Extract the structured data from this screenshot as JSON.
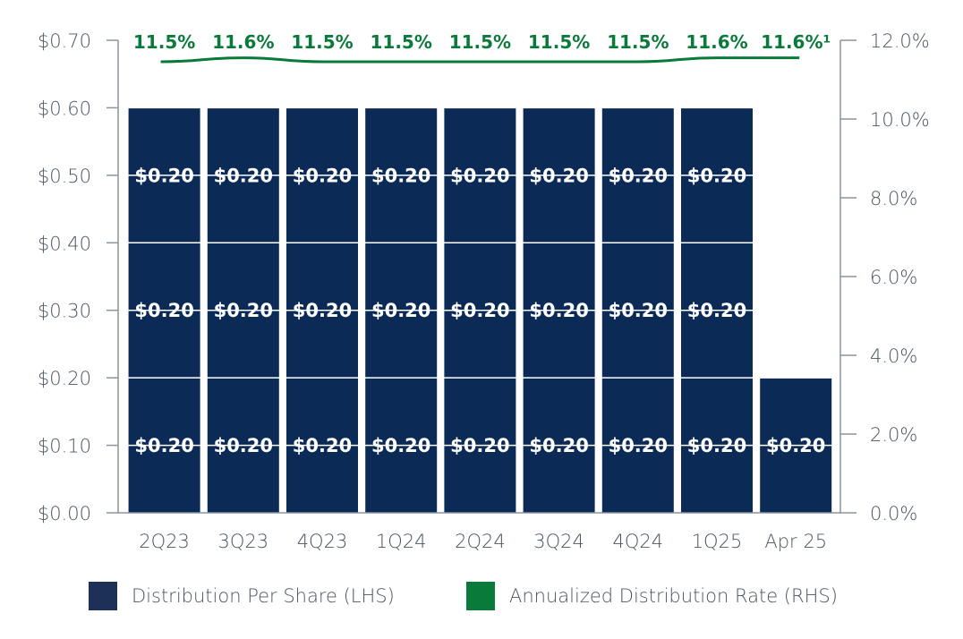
{
  "chart_data": {
    "type": "bar",
    "categories": [
      "2Q23",
      "3Q23",
      "4Q23",
      "1Q24",
      "2Q24",
      "3Q24",
      "4Q24",
      "1Q25",
      "Apr 25"
    ],
    "series": [
      {
        "name": "Distribution Per Share (LHS)",
        "axis": "left",
        "type": "stacked-bar",
        "segments_per_bar": [
          [
            "$0.20",
            "$0.20",
            "$0.20"
          ],
          [
            "$0.20",
            "$0.20",
            "$0.20"
          ],
          [
            "$0.20",
            "$0.20",
            "$0.20"
          ],
          [
            "$0.20",
            "$0.20",
            "$0.20"
          ],
          [
            "$0.20",
            "$0.20",
            "$0.20"
          ],
          [
            "$0.20",
            "$0.20",
            "$0.20"
          ],
          [
            "$0.20",
            "$0.20",
            "$0.20"
          ],
          [
            "$0.20",
            "$0.20",
            "$0.20"
          ],
          [
            "$0.20"
          ]
        ],
        "segment_values": [
          [
            0.2,
            0.2,
            0.2
          ],
          [
            0.2,
            0.2,
            0.2
          ],
          [
            0.2,
            0.2,
            0.2
          ],
          [
            0.2,
            0.2,
            0.2
          ],
          [
            0.2,
            0.2,
            0.2
          ],
          [
            0.2,
            0.2,
            0.2
          ],
          [
            0.2,
            0.2,
            0.2
          ],
          [
            0.2,
            0.2,
            0.2
          ],
          [
            0.2
          ]
        ],
        "color": "#0b2a55"
      },
      {
        "name": "Annualized Distribution Rate (RHS)",
        "axis": "right",
        "type": "line",
        "values": [
          11.5,
          11.6,
          11.5,
          11.5,
          11.5,
          11.5,
          11.5,
          11.6,
          11.6
        ],
        "labels": [
          "11.5%",
          "11.6%",
          "11.5%",
          "11.5%",
          "11.5%",
          "11.5%",
          "11.5%",
          "11.6%",
          "11.6%¹"
        ],
        "color": "#0a7a3a"
      }
    ],
    "y_left": {
      "range": [
        0,
        0.7
      ],
      "ticks": [
        0,
        0.1,
        0.2,
        0.3,
        0.4,
        0.5,
        0.6,
        0.7
      ],
      "tick_labels": [
        "$0.00",
        "$0.10",
        "$0.20",
        "$0.30",
        "$0.40",
        "$0.50",
        "$0.60",
        "$0.70"
      ]
    },
    "y_right": {
      "range": [
        0,
        12
      ],
      "ticks": [
        0,
        2,
        4,
        6,
        8,
        10,
        12
      ],
      "tick_labels": [
        "0.0%",
        "2.0%",
        "4.0%",
        "6.0%",
        "8.0%",
        "10.0%",
        "12.0%"
      ]
    },
    "grid": true,
    "legend_position": "bottom",
    "legend": [
      {
        "label": "Distribution Per Share (LHS)",
        "color": "#1d3158"
      },
      {
        "label": "Annualized Distribution Rate (RHS)",
        "color": "#0a7a3a"
      }
    ]
  },
  "colors": {
    "bar": "#0b2a55",
    "line": "#0a7a3a",
    "axis": "#8a949e",
    "text": "#4a5562"
  }
}
